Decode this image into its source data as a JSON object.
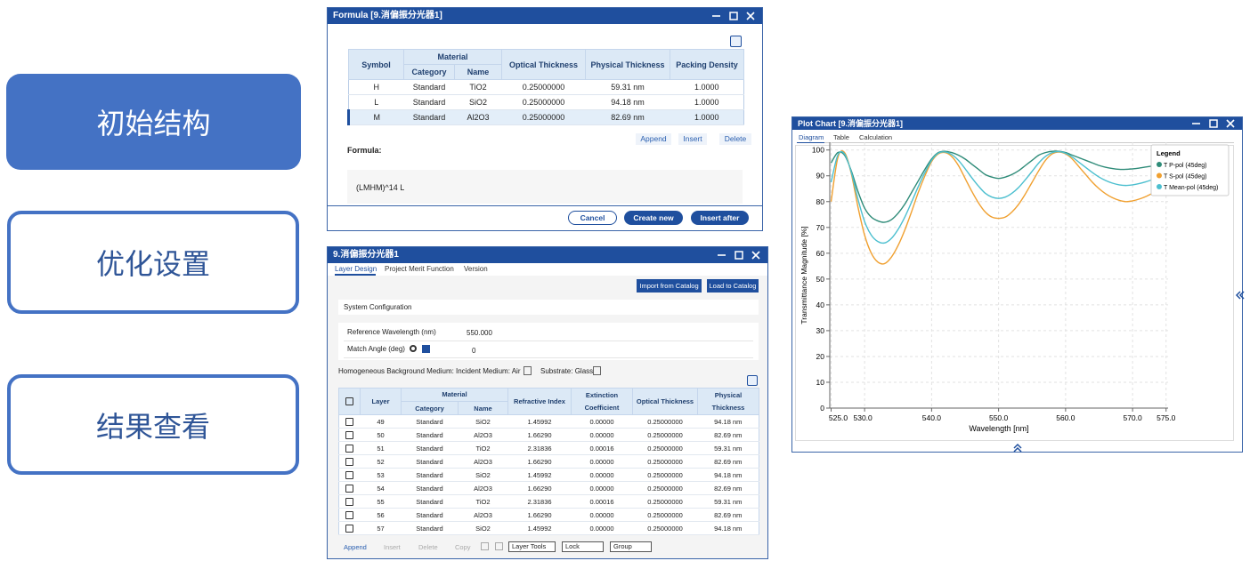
{
  "nav": {
    "items": [
      "初始结构",
      "优化设置",
      "结果查看"
    ]
  },
  "formula_window": {
    "title": "Formula [9.消偏振分光器1]",
    "table": {
      "header": {
        "symbol": "Symbol",
        "material": "Material",
        "category": "Category",
        "name": "Name",
        "optical": "Optical Thickness",
        "physical": "Physical Thickness",
        "packing": "Packing Density"
      },
      "rows": [
        [
          "H",
          "Standard",
          "TiO2",
          "0.25000000",
          "59.31 nm",
          "1.0000"
        ],
        [
          "L",
          "Standard",
          "SiO2",
          "0.25000000",
          "94.18 nm",
          "1.0000"
        ],
        [
          "M",
          "Standard",
          "Al2O3",
          "0.25000000",
          "82.69 nm",
          "1.0000"
        ]
      ]
    },
    "row_buttons": [
      "Append",
      "Insert",
      "Delete"
    ],
    "formula_label": "Formula:",
    "formula": "(LMHM)^14 L",
    "buttons": [
      "Cancel",
      "Create new",
      "Insert after"
    ]
  },
  "layer_window": {
    "title": "9.消偏振分光器1",
    "tabs": [
      "Layer Design",
      "Project Merit Function",
      "Version"
    ],
    "catalog_buttons": [
      "Import from Catalog",
      "Load to Catalog"
    ],
    "section": "System Configuration",
    "fields": [
      {
        "label": "Reference Wavelength (nm)",
        "value": "550.000"
      },
      {
        "label": "Match Angle (deg)",
        "value": "0"
      }
    ],
    "medium": {
      "label": "Homogeneous Background Medium:",
      "incident": "Incident Medium: Air",
      "substrate": "Substrate: Glass"
    },
    "table": {
      "header": {
        "layer": "Layer",
        "material": "Material",
        "category": "Category",
        "name": "Name",
        "refractive": "Refractive Index",
        "extinction": "Extinction Coefficient",
        "optical": "Optical Thickness",
        "physical": "Physical Thickness"
      },
      "rows": [
        [
          "49",
          "Standard",
          "SiO2",
          "1.45992",
          "0.00000",
          "0.25000000",
          "94.18 nm"
        ],
        [
          "50",
          "Standard",
          "Al2O3",
          "1.66290",
          "0.00000",
          "0.25000000",
          "82.69 nm"
        ],
        [
          "51",
          "Standard",
          "TiO2",
          "2.31836",
          "0.00016",
          "0.25000000",
          "59.31 nm"
        ],
        [
          "52",
          "Standard",
          "Al2O3",
          "1.66290",
          "0.00000",
          "0.25000000",
          "82.69 nm"
        ],
        [
          "53",
          "Standard",
          "SiO2",
          "1.45992",
          "0.00000",
          "0.25000000",
          "94.18 nm"
        ],
        [
          "54",
          "Standard",
          "Al2O3",
          "1.66290",
          "0.00000",
          "0.25000000",
          "82.69 nm"
        ],
        [
          "55",
          "Standard",
          "TiO2",
          "2.31836",
          "0.00016",
          "0.25000000",
          "59.31 nm"
        ],
        [
          "56",
          "Standard",
          "Al2O3",
          "1.66290",
          "0.00000",
          "0.25000000",
          "82.69 nm"
        ],
        [
          "57",
          "Standard",
          "SiO2",
          "1.45992",
          "0.00000",
          "0.25000000",
          "94.18 nm"
        ]
      ]
    },
    "toolbar": [
      "Append",
      "Insert",
      "Delete",
      "Copy"
    ],
    "dropdowns": [
      "Layer Tools",
      "Lock",
      "Group"
    ]
  },
  "plot_window": {
    "title": "Plot Chart [9.消偏振分光器1]",
    "tabs": [
      "Diagram",
      "Table",
      "Calculation"
    ]
  },
  "chart_data": {
    "type": "line",
    "xlabel": "Wavelength [nm]",
    "ylabel": "Transmittance Magnitude [%]",
    "legend_title": "Legend",
    "legend": "upper right",
    "grid": true,
    "xlim": [
      524.8,
      575.3
    ],
    "ylim": [
      0,
      103
    ],
    "xticks": [
      {
        "value": 525,
        "label": "525.0"
      },
      {
        "value": 530,
        "label": "530.0"
      },
      {
        "value": 540,
        "label": "540.0"
      },
      {
        "value": 550,
        "label": "550.0"
      },
      {
        "value": 560,
        "label": "560.0"
      },
      {
        "value": 570,
        "label": "570.0"
      },
      {
        "value": 575,
        "label": "575.0"
      }
    ],
    "yticks": [
      0,
      10,
      20,
      30,
      40,
      50,
      60,
      70,
      80,
      90,
      100
    ],
    "x": [
      525,
      526,
      527,
      528,
      529,
      530,
      531,
      532,
      533,
      534,
      535,
      536,
      537,
      538,
      539,
      540,
      541,
      542,
      543,
      544,
      545,
      546,
      547,
      548,
      549,
      550,
      551,
      552,
      553,
      554,
      555,
      556,
      557,
      558,
      559,
      560,
      561,
      562,
      563,
      564,
      565,
      566,
      567,
      568,
      569,
      570,
      571,
      572,
      573,
      574,
      575
    ],
    "series": [
      {
        "name": "T P-pol (45deg)",
        "color": "#2e8b78",
        "values": [
          95,
          99,
          98,
          92,
          84,
          77.5,
          74,
          72.5,
          72,
          73,
          75.5,
          79,
          83.5,
          88,
          92.5,
          96.5,
          99,
          99.5,
          99,
          98,
          96.5,
          94.5,
          92.5,
          90.5,
          89.5,
          89,
          89.5,
          90.5,
          92,
          94,
          96,
          98,
          99,
          99.5,
          99.5,
          99,
          98,
          97,
          96,
          95,
          94,
          93.3,
          92.8,
          92.5,
          92.5,
          92.7,
          93,
          93.4,
          93.8,
          94.2,
          94.6
        ]
      },
      {
        "name": "T S-pol (45deg)",
        "color": "#f0a030",
        "values": [
          80,
          97,
          99,
          91,
          78,
          67,
          60,
          56.5,
          56,
          58.5,
          63,
          69,
          76,
          83.5,
          90,
          95.5,
          98.5,
          99,
          97.5,
          94,
          89,
          84,
          79.5,
          76,
          74,
          73.5,
          74,
          76,
          79,
          83,
          87.5,
          92,
          96,
          98.5,
          99.2,
          98.5,
          96.5,
          93.5,
          90.5,
          87.5,
          85,
          83,
          81.5,
          80.5,
          80,
          80.3,
          81,
          82,
          83.3,
          84.7,
          86
        ]
      },
      {
        "name": "T Mean-pol (45deg)",
        "color": "#4cbfcf",
        "values": [
          87.5,
          98,
          98.5,
          91.5,
          81,
          72.25,
          67,
          64.5,
          64,
          65.75,
          69.25,
          74,
          79.75,
          85.75,
          91.25,
          96,
          98.75,
          99.25,
          98.25,
          96,
          92.75,
          89.25,
          86,
          83.25,
          81.75,
          81.25,
          81.75,
          83.25,
          85.5,
          88.5,
          91.75,
          95,
          97.5,
          99,
          99.35,
          98.75,
          97.25,
          95.25,
          93.25,
          91.25,
          89.5,
          88.15,
          87.15,
          86.5,
          86.25,
          86.5,
          87,
          87.7,
          88.55,
          89.45,
          90.3
        ]
      }
    ]
  }
}
